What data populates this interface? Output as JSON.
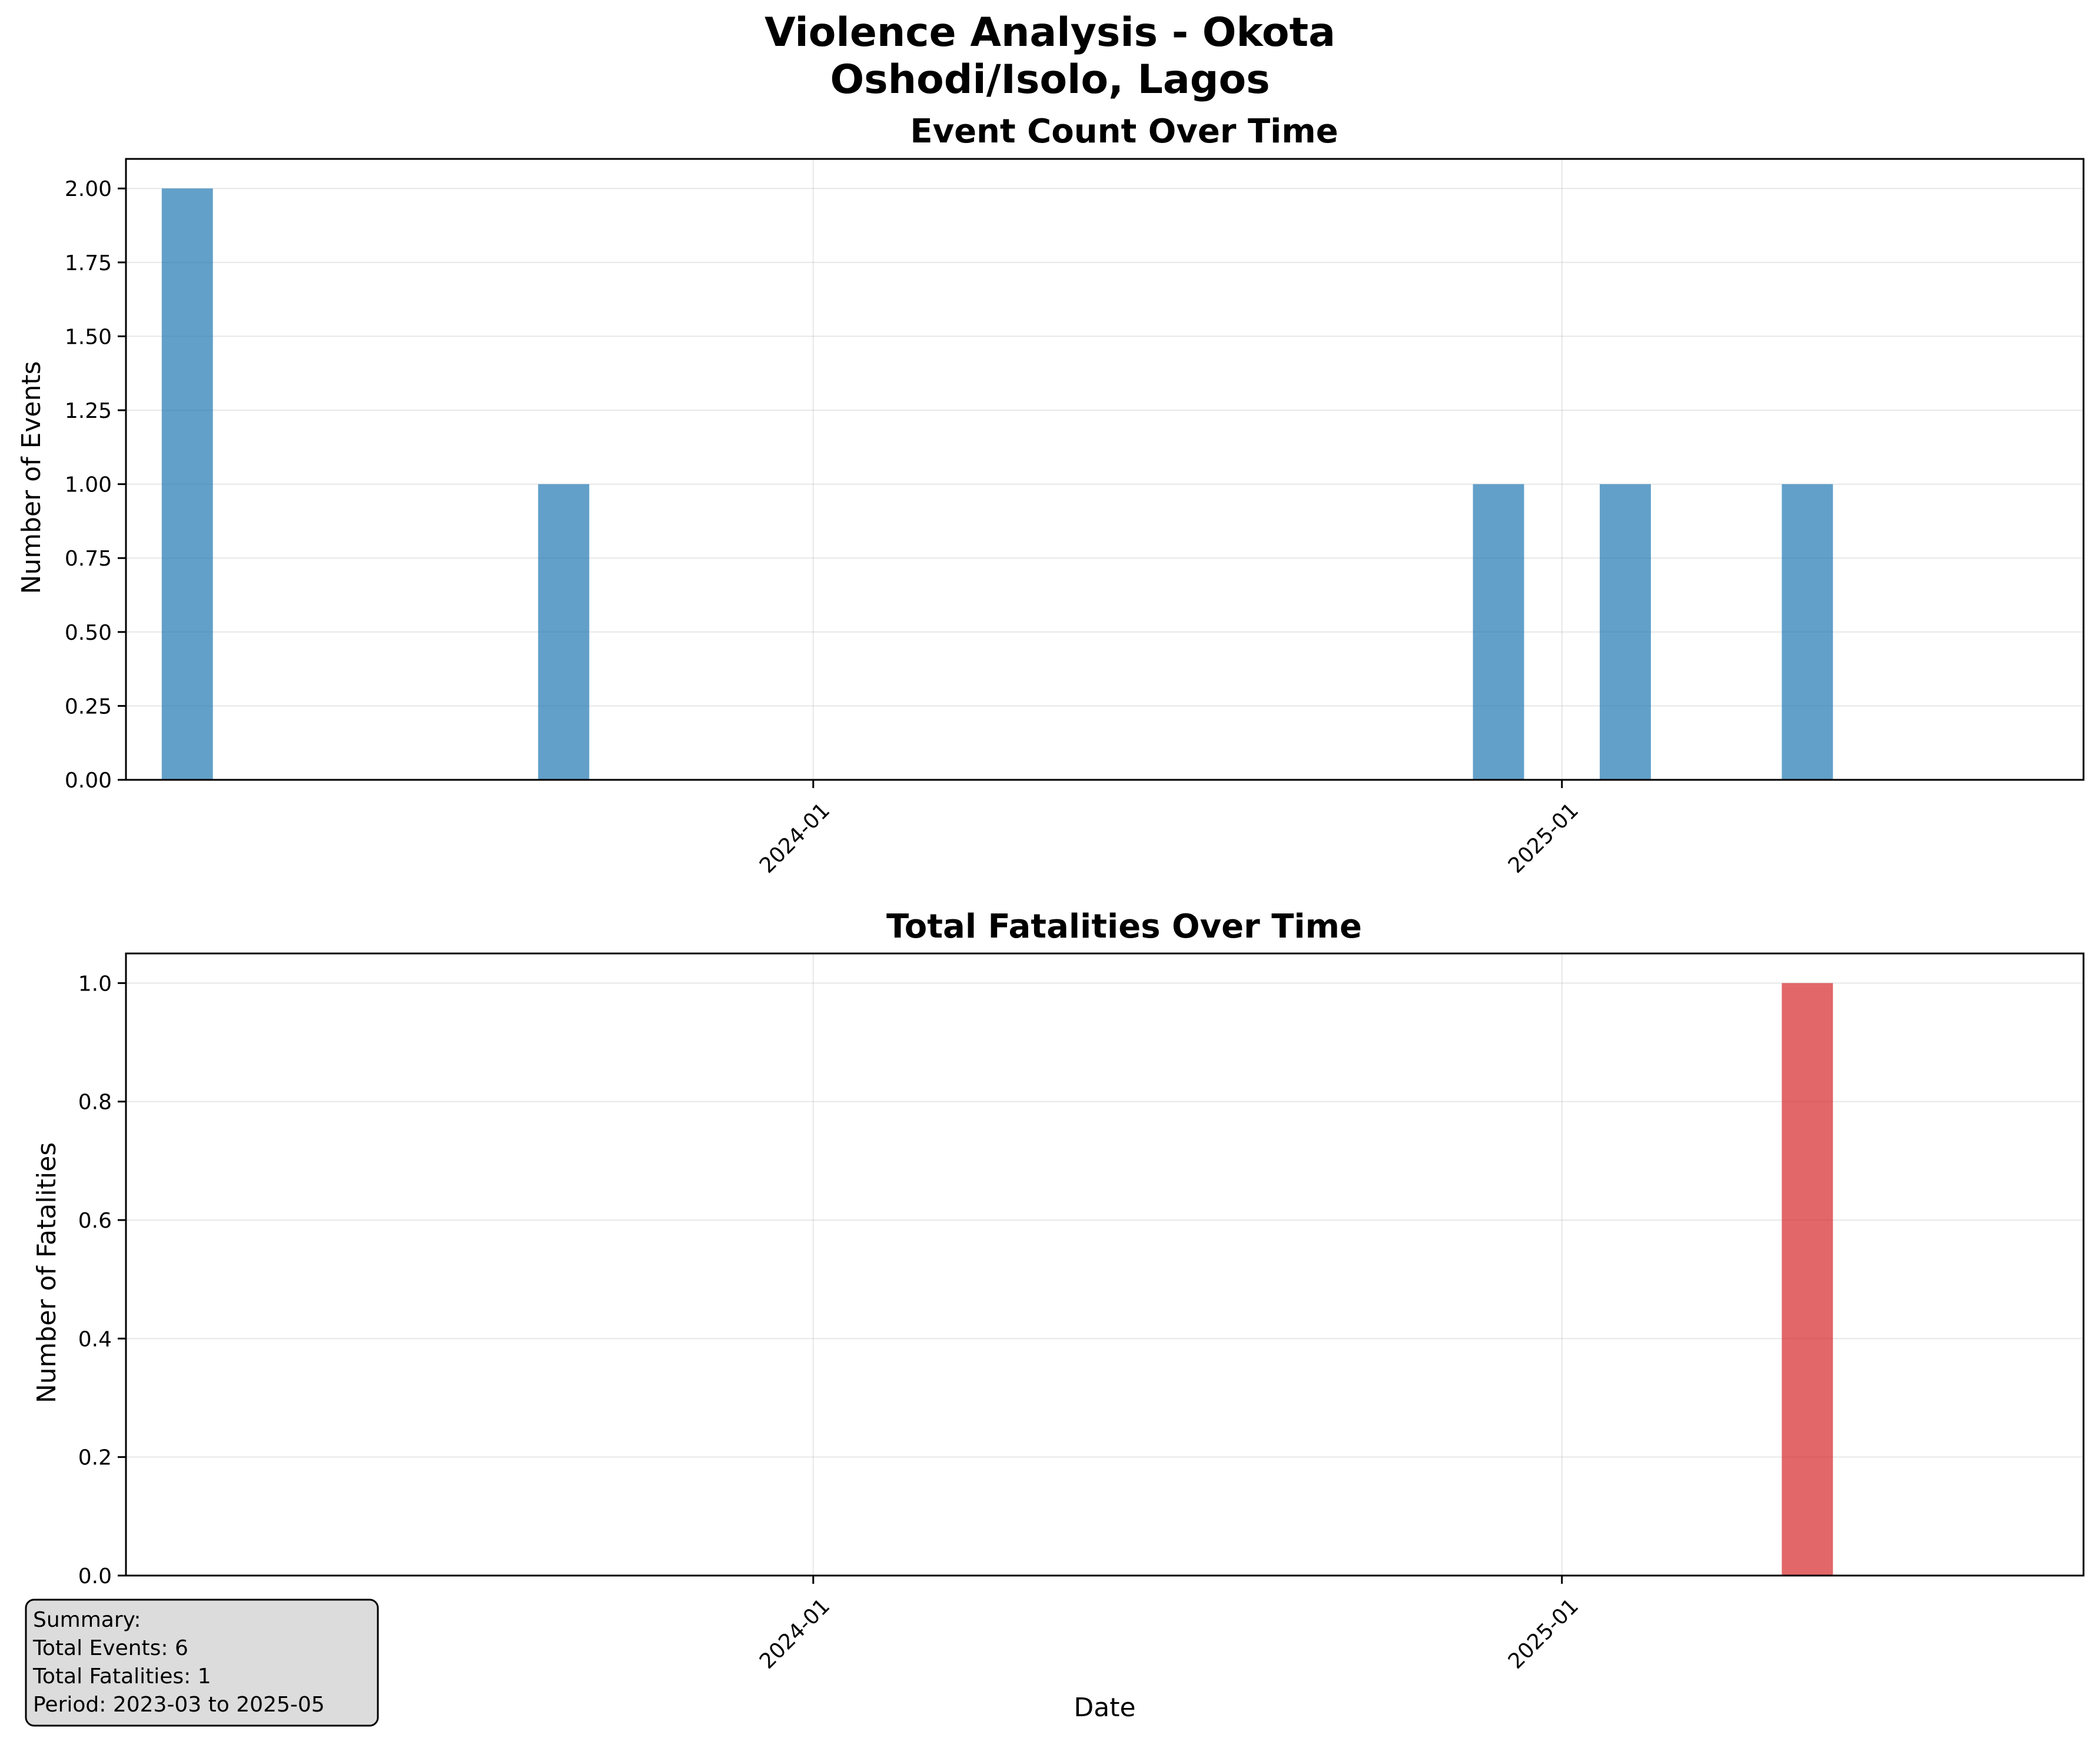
{
  "figure": {
    "title_line1": "Violence Analysis - Okota",
    "title_line2": "Oshodi/Isolo, Lagos"
  },
  "summary": {
    "header": "Summary:",
    "events": "Total Events: 6",
    "fatalities": "Total Fatalities: 1",
    "period": "Period: 2023-03 to 2025-05"
  },
  "chart_data": [
    {
      "type": "bar",
      "title": "Event Count Over Time",
      "xlabel": "",
      "ylabel": "Number of Events",
      "color": "#1f77b4",
      "x": [
        "2023-03",
        "2023-09",
        "2024-12",
        "2025-02",
        "2025-05"
      ],
      "values": [
        2,
        1,
        1,
        1,
        1
      ],
      "xlim": [
        "2023-01-30",
        "2025-09-13"
      ],
      "ylim": [
        0,
        2.1
      ],
      "yticks": [
        0,
        0.25,
        0.5,
        0.75,
        1.0,
        1.25,
        1.5,
        1.75,
        2.0
      ],
      "yticklabels": [
        "0.00",
        "0.25",
        "0.50",
        "0.75",
        "1.00",
        "1.25",
        "1.50",
        "1.75",
        "2.00"
      ],
      "xticks": [
        "2024-01",
        "2025-01"
      ],
      "grid": true
    },
    {
      "type": "bar",
      "title": "Total Fatalities Over Time",
      "xlabel": "Date",
      "ylabel": "Number of Fatalities",
      "color": "#d62728",
      "x": [
        "2025-05"
      ],
      "values": [
        1
      ],
      "xlim": [
        "2023-01-30",
        "2025-09-13"
      ],
      "ylim": [
        0,
        1.05
      ],
      "yticks": [
        0,
        0.2,
        0.4,
        0.6,
        0.8,
        1.0
      ],
      "yticklabels": [
        "0.0",
        "0.2",
        "0.4",
        "0.6",
        "0.8",
        "1.0"
      ],
      "xticks": [
        "2024-01",
        "2025-01"
      ],
      "grid": true
    }
  ]
}
